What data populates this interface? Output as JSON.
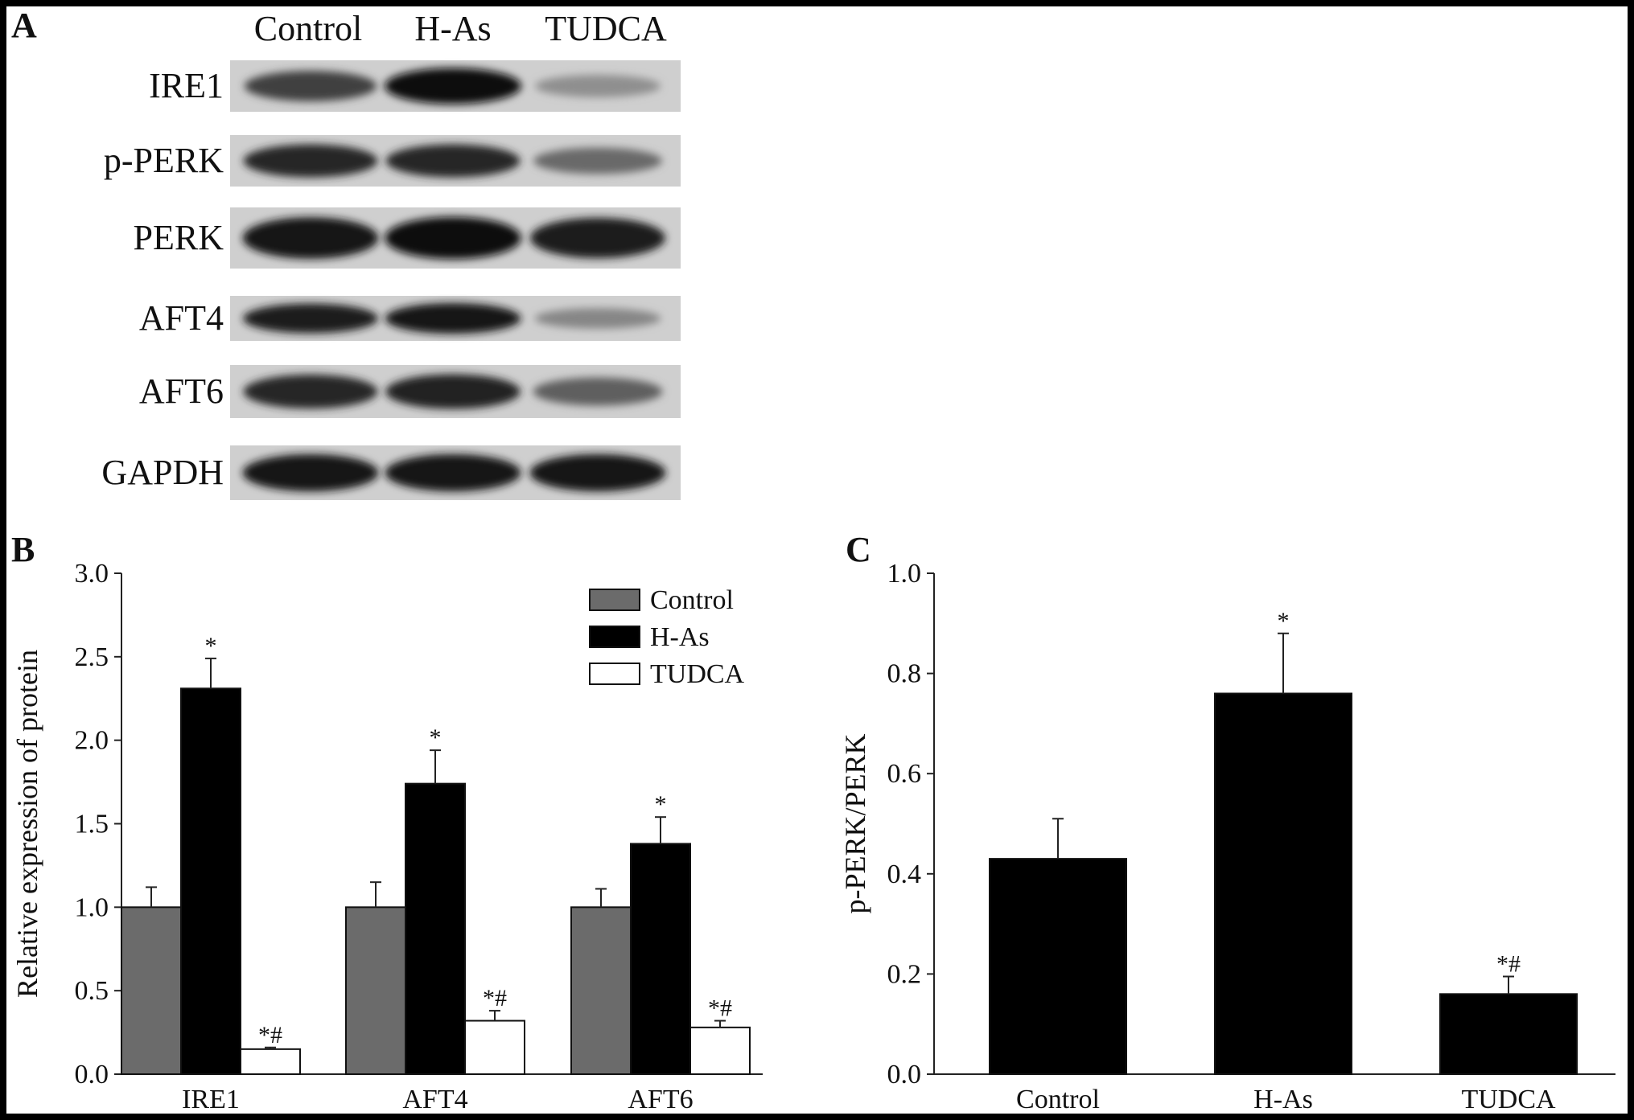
{
  "panels": {
    "a": "A",
    "b": "B",
    "c": "C"
  },
  "blot": {
    "lanes": [
      "Control",
      "H-As",
      "TUDCA"
    ],
    "proteins": [
      {
        "name": "IRE1",
        "intensity": [
          0.72,
          1.0,
          0.3
        ]
      },
      {
        "name": "p-PERK",
        "intensity": [
          0.85,
          0.85,
          0.5
        ]
      },
      {
        "name": "PERK",
        "intensity": [
          0.95,
          0.98,
          0.9
        ]
      },
      {
        "name": "AFT4",
        "intensity": [
          0.9,
          0.95,
          0.35
        ]
      },
      {
        "name": "AFT6",
        "intensity": [
          0.85,
          0.88,
          0.55
        ]
      },
      {
        "name": "GAPDH",
        "intensity": [
          0.95,
          0.95,
          0.95
        ]
      }
    ]
  },
  "chart_data": [
    {
      "type": "bar",
      "categories": [
        "IRE1",
        "AFT4",
        "AFT6"
      ],
      "series": [
        {
          "name": "Control",
          "values": [
            1.0,
            1.0,
            1.0
          ],
          "errors": [
            0.12,
            0.15,
            0.11
          ],
          "color": "#6b6b6b"
        },
        {
          "name": "H-As",
          "values": [
            2.31,
            1.74,
            1.38
          ],
          "errors": [
            0.18,
            0.2,
            0.16
          ],
          "color": "#000000"
        },
        {
          "name": "TUDCA",
          "values": [
            0.15,
            0.32,
            0.28
          ],
          "errors": [
            0.01,
            0.06,
            0.04
          ],
          "color": "#ffffff"
        }
      ],
      "annotations": [
        [
          "",
          "*",
          "*#"
        ],
        [
          "",
          "*",
          "*#"
        ],
        [
          "",
          "*",
          "*#"
        ]
      ],
      "xlabel": "",
      "ylabel": "Relative expression of protein",
      "ylim": [
        0,
        3.0
      ],
      "yticks": [
        "0.0",
        "0.5",
        "1.0",
        "1.5",
        "2.0",
        "2.5",
        "3.0"
      ],
      "legend": "top-right",
      "grid": false
    },
    {
      "type": "bar",
      "categories": [
        "Control",
        "H-As",
        "TUDCA"
      ],
      "values": [
        0.43,
        0.76,
        0.16
      ],
      "errors": [
        0.08,
        0.12,
        0.035
      ],
      "annotations": [
        "",
        "*",
        "*#"
      ],
      "color": "#000000",
      "xlabel": "",
      "ylabel": "p-PERK/PERK",
      "ylim": [
        0,
        1.0
      ],
      "yticks": [
        "0.0",
        "0.2",
        "0.4",
        "0.6",
        "0.8",
        "1.0"
      ],
      "grid": false
    }
  ]
}
